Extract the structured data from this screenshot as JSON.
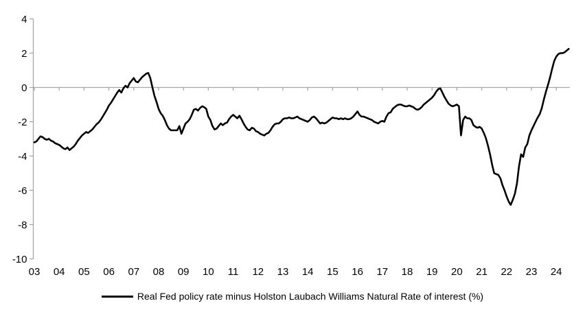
{
  "page": {
    "background_color": "#ffffff"
  },
  "chart_data": {
    "type": "line",
    "title": "",
    "xlabel": "",
    "ylabel": "",
    "ylim": [
      -10,
      4
    ],
    "y_ticks": [
      4,
      2,
      0,
      -2,
      -4,
      -6,
      -8,
      -10
    ],
    "x_tick_labels": [
      "03",
      "04",
      "05",
      "06",
      "07",
      "08",
      "09",
      "10",
      "11",
      "12",
      "13",
      "14",
      "15",
      "16",
      "17",
      "18",
      "19",
      "20",
      "21",
      "22",
      "23",
      "24"
    ],
    "grid": "none",
    "zero_line": true,
    "legend_position": "bottom-center",
    "axis_color": "#a6a6a6",
    "tick_label_color": "#000000",
    "series": [
      {
        "name": "Real Fed policy rate minus Holston Laubach Williams Natural Rate of interest (%)",
        "color": "#000000",
        "frequency": "monthly",
        "start": "2003-01",
        "end": "2024-07",
        "values": [
          -3.2,
          -3.15,
          -3.0,
          -2.85,
          -2.9,
          -3.0,
          -3.05,
          -3.0,
          -3.1,
          -3.15,
          -3.25,
          -3.3,
          -3.35,
          -3.45,
          -3.55,
          -3.6,
          -3.5,
          -3.65,
          -3.55,
          -3.45,
          -3.3,
          -3.1,
          -2.95,
          -2.8,
          -2.7,
          -2.6,
          -2.65,
          -2.55,
          -2.45,
          -2.3,
          -2.15,
          -2.05,
          -1.9,
          -1.7,
          -1.5,
          -1.3,
          -1.05,
          -0.9,
          -0.7,
          -0.5,
          -0.3,
          -0.15,
          -0.3,
          -0.05,
          0.1,
          0.0,
          0.25,
          0.4,
          0.55,
          0.35,
          0.3,
          0.45,
          0.6,
          0.7,
          0.8,
          0.85,
          0.55,
          0.0,
          -0.5,
          -0.85,
          -1.25,
          -1.5,
          -1.65,
          -1.9,
          -2.2,
          -2.4,
          -2.5,
          -2.5,
          -2.5,
          -2.5,
          -2.25,
          -2.7,
          -2.4,
          -2.1,
          -2.0,
          -1.85,
          -1.6,
          -1.3,
          -1.25,
          -1.35,
          -1.2,
          -1.1,
          -1.15,
          -1.25,
          -1.7,
          -1.9,
          -2.25,
          -2.45,
          -2.4,
          -2.25,
          -2.1,
          -2.2,
          -2.1,
          -2.05,
          -1.85,
          -1.7,
          -1.6,
          -1.7,
          -1.8,
          -1.65,
          -1.85,
          -2.1,
          -2.3,
          -2.45,
          -2.5,
          -2.35,
          -2.4,
          -2.55,
          -2.6,
          -2.7,
          -2.75,
          -2.8,
          -2.7,
          -2.65,
          -2.5,
          -2.3,
          -2.15,
          -2.1,
          -2.1,
          -2.0,
          -1.85,
          -1.8,
          -1.8,
          -1.75,
          -1.8,
          -1.8,
          -1.75,
          -1.7,
          -1.8,
          -1.85,
          -1.9,
          -1.95,
          -2.0,
          -1.9,
          -1.75,
          -1.7,
          -1.8,
          -1.95,
          -2.1,
          -2.05,
          -2.1,
          -2.05,
          -1.95,
          -1.85,
          -1.75,
          -1.8,
          -1.8,
          -1.85,
          -1.8,
          -1.85,
          -1.8,
          -1.85,
          -1.85,
          -1.8,
          -1.7,
          -1.55,
          -1.4,
          -1.6,
          -1.7,
          -1.7,
          -1.75,
          -1.8,
          -1.85,
          -1.9,
          -2.0,
          -2.05,
          -2.1,
          -2.0,
          -1.95,
          -2.0,
          -1.7,
          -1.5,
          -1.45,
          -1.25,
          -1.15,
          -1.05,
          -1.0,
          -1.0,
          -1.05,
          -1.1,
          -1.1,
          -1.05,
          -1.1,
          -1.15,
          -1.25,
          -1.3,
          -1.25,
          -1.15,
          -1.0,
          -0.9,
          -0.8,
          -0.7,
          -0.6,
          -0.45,
          -0.25,
          -0.1,
          -0.05,
          -0.3,
          -0.55,
          -0.75,
          -0.95,
          -1.05,
          -1.1,
          -1.05,
          -1.0,
          -1.1,
          -2.8,
          -1.9,
          -1.7,
          -1.8,
          -1.8,
          -1.9,
          -2.2,
          -2.3,
          -2.35,
          -2.3,
          -2.4,
          -2.65,
          -2.95,
          -3.4,
          -3.9,
          -4.5,
          -5.0,
          -5.05,
          -5.1,
          -5.3,
          -5.7,
          -6.0,
          -6.35,
          -6.65,
          -6.85,
          -6.55,
          -6.2,
          -5.6,
          -4.6,
          -3.9,
          -4.05,
          -3.5,
          -3.3,
          -2.8,
          -2.5,
          -2.25,
          -2.0,
          -1.75,
          -1.55,
          -1.2,
          -0.7,
          -0.25,
          0.15,
          0.6,
          1.1,
          1.55,
          1.8,
          1.95,
          2.0,
          2.0,
          2.05,
          2.15,
          2.25
        ]
      }
    ]
  },
  "legend": {
    "label": "Real Fed policy rate minus Holston Laubach Williams Natural Rate of interest (%)"
  }
}
